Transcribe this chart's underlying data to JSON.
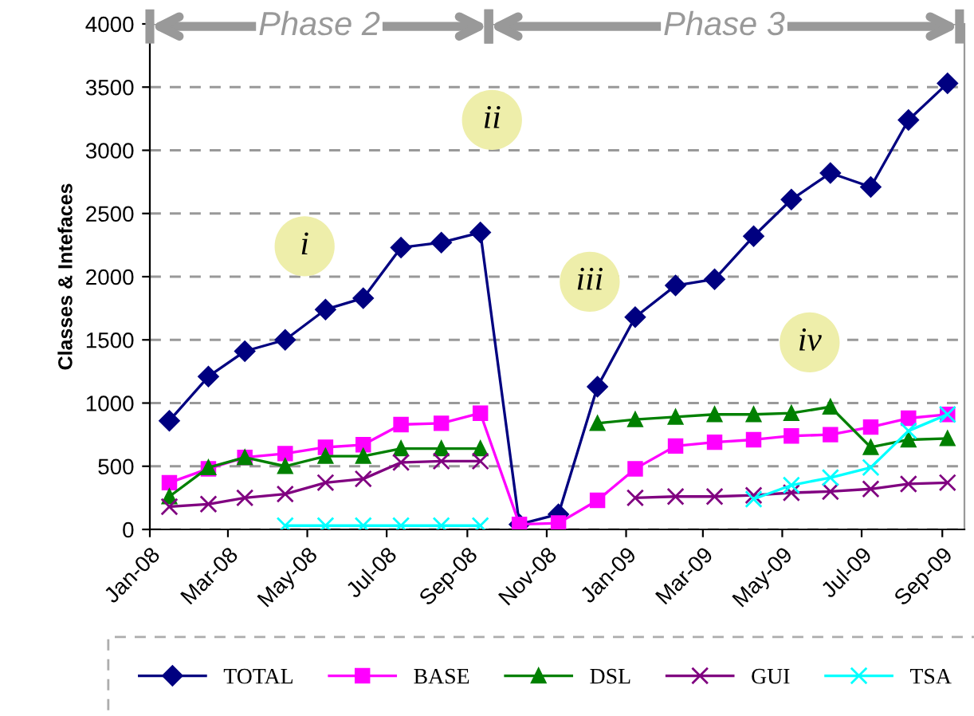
{
  "chart_data": {
    "type": "line",
    "ylabel": "Classes & Intefaces",
    "x": [
      "2008-01-16",
      "2008-02-15",
      "2008-03-14",
      "2008-04-14",
      "2008-05-15",
      "2008-06-13",
      "2008-07-12",
      "2008-08-12",
      "2008-09-11",
      "2008-10-11",
      "2008-11-10",
      "2008-12-10",
      "2009-01-08",
      "2009-02-08",
      "2009-03-10",
      "2009-04-09",
      "2009-05-08",
      "2009-06-07",
      "2009-07-08",
      "2009-08-06",
      "2009-09-05"
    ],
    "series": [
      {
        "name": "TOTAL",
        "color": "#000080",
        "marker": "diamond",
        "values": [
          860,
          1210,
          1410,
          1500,
          1740,
          1830,
          2230,
          2270,
          2350,
          40,
          120,
          1130,
          1680,
          1930,
          1980,
          2320,
          2610,
          2820,
          2710,
          3240,
          3530
        ]
      },
      {
        "name": "BASE",
        "color": "#ff00ff",
        "marker": "square",
        "values": [
          370,
          480,
          570,
          600,
          650,
          670,
          830,
          840,
          920,
          40,
          50,
          230,
          480,
          660,
          690,
          710,
          740,
          750,
          810,
          880,
          910
        ]
      },
      {
        "name": "DSL",
        "color": "#008000",
        "marker": "triangle",
        "values": [
          260,
          490,
          570,
          500,
          580,
          580,
          640,
          640,
          640,
          null,
          null,
          840,
          870,
          890,
          910,
          910,
          920,
          970,
          650,
          710,
          720
        ]
      },
      {
        "name": "GUI",
        "color": "#800080",
        "marker": "cross",
        "values": [
          180,
          200,
          250,
          280,
          370,
          400,
          530,
          540,
          540,
          null,
          null,
          null,
          250,
          260,
          260,
          270,
          290,
          300,
          320,
          360,
          370
        ]
      },
      {
        "name": "TSA",
        "color": "#00ffff",
        "marker": "cross",
        "values": [
          null,
          null,
          null,
          30,
          30,
          30,
          30,
          30,
          30,
          null,
          null,
          null,
          null,
          null,
          null,
          240,
          350,
          410,
          490,
          780,
          910
        ]
      }
    ],
    "xlim": [
      "2008-01-01",
      "2009-09-18"
    ],
    "xticks": [
      {
        "value": "2008-01-01",
        "label": "Jan-08"
      },
      {
        "value": "2008-03-01",
        "label": "Mar-08"
      },
      {
        "value": "2008-05-01",
        "label": "May-08"
      },
      {
        "value": "2008-07-01",
        "label": "Jul-08"
      },
      {
        "value": "2008-09-01",
        "label": "Sep-08"
      },
      {
        "value": "2008-11-01",
        "label": "Nov-08"
      },
      {
        "value": "2009-01-01",
        "label": "Jan-09"
      },
      {
        "value": "2009-03-01",
        "label": "Mar-09"
      },
      {
        "value": "2009-05-01",
        "label": "May-09"
      },
      {
        "value": "2009-07-01",
        "label": "Jul-09"
      },
      {
        "value": "2009-09-01",
        "label": "Sep-09"
      }
    ],
    "ylim": [
      0,
      4000
    ],
    "yticks": [
      0,
      500,
      1000,
      1500,
      2000,
      2500,
      3000,
      3500,
      4000
    ],
    "grid": "y",
    "legend": "bottom",
    "line_style": "solid",
    "annotations": [
      "Phase 2",
      "Phase 3",
      "i",
      "ii",
      "iii",
      "iv"
    ]
  }
}
